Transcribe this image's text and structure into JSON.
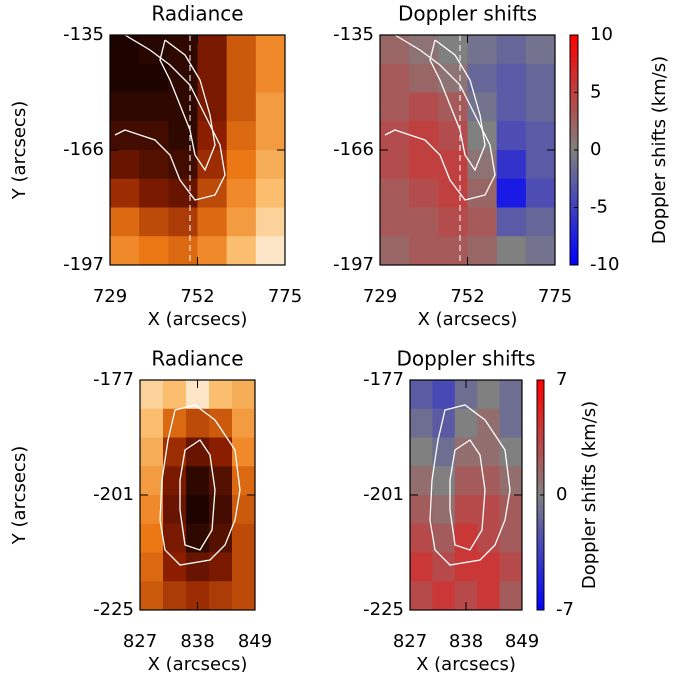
{
  "chart_data": [
    {
      "type": "heatmap",
      "title": "Radiance",
      "xlabel": "X (arcsecs)",
      "ylabel": "Y (arcsecs)",
      "colormap": "hot",
      "xlim": [
        729,
        775
      ],
      "xticks": [
        729,
        752,
        775
      ],
      "ylim": [
        -197,
        -135
      ],
      "yticks": [
        -135,
        -166,
        -197
      ],
      "values": [
        [
          0.05,
          0.08,
          0.1,
          0.3,
          0.55,
          0.7
        ],
        [
          0.05,
          0.05,
          0.1,
          0.3,
          0.55,
          0.7
        ],
        [
          0.1,
          0.1,
          0.1,
          0.3,
          0.55,
          0.75
        ],
        [
          0.15,
          0.15,
          0.1,
          0.35,
          0.6,
          0.75
        ],
        [
          0.25,
          0.2,
          0.15,
          0.4,
          0.65,
          0.8
        ],
        [
          0.4,
          0.3,
          0.25,
          0.5,
          0.7,
          0.85
        ],
        [
          0.6,
          0.5,
          0.45,
          0.6,
          0.75,
          0.9
        ],
        [
          0.7,
          0.65,
          0.6,
          0.7,
          0.85,
          0.95
        ]
      ]
    },
    {
      "type": "heatmap",
      "title": "Doppler shifts",
      "xlabel": "X (arcsecs)",
      "colormap": "doppler",
      "xlim": [
        729,
        775
      ],
      "xticks": [
        729,
        752,
        775
      ],
      "ylim": [
        -197,
        -135
      ],
      "yticks": [
        -135,
        -166,
        -197
      ],
      "colorbar_label": "Doppler shifts (km/s)",
      "clim": [
        -10,
        10
      ],
      "cticks": [
        10,
        5,
        0,
        -5,
        -10
      ],
      "values": [
        [
          2,
          1,
          0,
          -1,
          -2,
          -1
        ],
        [
          3,
          2,
          1,
          -2,
          -3,
          -2
        ],
        [
          3,
          4,
          3,
          -1,
          -3,
          -2
        ],
        [
          4,
          5,
          4,
          0,
          -4,
          -3
        ],
        [
          4,
          5,
          5,
          1,
          -6,
          -3
        ],
        [
          3,
          4,
          5,
          2,
          -8,
          -4
        ],
        [
          3,
          3,
          4,
          3,
          -3,
          -2
        ],
        [
          2,
          3,
          3,
          2,
          0,
          -1
        ]
      ]
    },
    {
      "type": "heatmap",
      "title": "Radiance",
      "xlabel": "X (arcsecs)",
      "ylabel": "Y (arcsecs)",
      "colormap": "hot",
      "xlim": [
        827,
        849
      ],
      "xticks": [
        827,
        838,
        849
      ],
      "ylim": [
        -225,
        -177
      ],
      "yticks": [
        -177,
        -201,
        -225
      ],
      "values": [
        [
          0.9,
          0.85,
          0.95,
          0.85,
          0.8
        ],
        [
          0.85,
          0.6,
          0.5,
          0.55,
          0.75
        ],
        [
          0.8,
          0.4,
          0.25,
          0.35,
          0.7
        ],
        [
          0.75,
          0.3,
          0.1,
          0.2,
          0.6
        ],
        [
          0.7,
          0.25,
          0.05,
          0.15,
          0.55
        ],
        [
          0.65,
          0.3,
          0.1,
          0.2,
          0.5
        ],
        [
          0.6,
          0.35,
          0.25,
          0.3,
          0.5
        ],
        [
          0.55,
          0.45,
          0.4,
          0.45,
          0.5
        ]
      ]
    },
    {
      "type": "heatmap",
      "title": "Doppler shifts",
      "xlabel": "X (arcsecs)",
      "colormap": "doppler",
      "xlim": [
        827,
        849
      ],
      "xticks": [
        827,
        838,
        849
      ],
      "ylim": [
        -225,
        -177
      ],
      "yticks": [
        -177,
        -201,
        -225
      ],
      "colorbar_label": "Doppler shifts (km/s)",
      "clim": [
        -7,
        7
      ],
      "cticks": [
        7,
        0,
        -7
      ],
      "values": [
        [
          -2,
          -3,
          -1,
          0,
          -1
        ],
        [
          -1,
          -2,
          0,
          1,
          -1
        ],
        [
          0,
          -1,
          1,
          1,
          0
        ],
        [
          1,
          0,
          2,
          2,
          1
        ],
        [
          2,
          1,
          3,
          3,
          2
        ],
        [
          3,
          2,
          4,
          3,
          2
        ],
        [
          4,
          3,
          4,
          4,
          3
        ],
        [
          3,
          4,
          3,
          4,
          2
        ]
      ]
    }
  ]
}
